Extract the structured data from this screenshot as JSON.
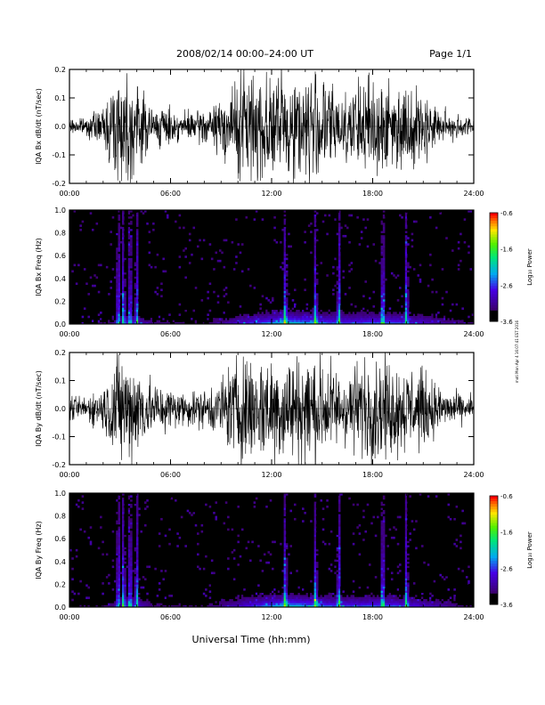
{
  "header": {
    "title": "2008/02/14  00:00–24:00 UT",
    "page": "Page 1/1"
  },
  "footer": {
    "xlabel": "Universal Time (hh:mm)"
  },
  "side_note": "moti Mon Apr 4 16:07:41 EST 2016",
  "chart_data": [
    {
      "type": "line",
      "id": "bx-dbdt",
      "ylabel": "IQA Bx dB/dt (nT/sec)",
      "ylim": [
        -0.2,
        0.2
      ],
      "yticks": [
        "-0.2",
        "-0.1",
        "0.0",
        "0.1",
        "0.2"
      ],
      "xlim": [
        "00:00",
        "24:00"
      ],
      "xticks": [
        "00:00",
        "06:00",
        "12:00",
        "18:00",
        "24:00"
      ],
      "activity_envelope": {
        "hours": [
          0,
          1,
          2,
          2.7,
          3,
          3.5,
          4,
          5,
          6,
          7,
          8,
          9,
          9.5,
          10,
          11,
          12,
          13,
          14,
          15,
          16,
          17,
          18,
          19,
          20,
          21,
          22,
          23,
          24
        ],
        "amplitude": [
          0.03,
          0.04,
          0.08,
          0.25,
          0.25,
          0.25,
          0.2,
          0.09,
          0.08,
          0.06,
          0.08,
          0.12,
          0.17,
          0.25,
          0.25,
          0.25,
          0.25,
          0.25,
          0.25,
          0.16,
          0.18,
          0.25,
          0.2,
          0.18,
          0.15,
          0.08,
          0.06,
          0.04
        ]
      }
    },
    {
      "type": "heatmap",
      "id": "bx-spec",
      "ylabel": "IQA Bx Freq (Hz)",
      "ylim": [
        0,
        1.0
      ],
      "yticks": [
        "0.0",
        "0.2",
        "0.4",
        "0.6",
        "0.8",
        "1.0"
      ],
      "xlim": [
        "00:00",
        "24:00"
      ],
      "xticks": [
        "00:00",
        "06:00",
        "12:00",
        "18:00",
        "24:00"
      ],
      "colorbar": {
        "label": "Log₁₀ Power",
        "range": [
          -3.6,
          -0.6
        ],
        "ticks": [
          "-0.6",
          "-1.6",
          "-2.6",
          "-3.6"
        ]
      },
      "vertical_bursts_hours": [
        2.9,
        3.2,
        3.6,
        4.0,
        12.8,
        14.6,
        16.0,
        18.6,
        20.0
      ],
      "noise_floor_log10": -3.6
    },
    {
      "type": "line",
      "id": "by-dbdt",
      "ylabel": "IQA By dB/dt (nT/sec)",
      "ylim": [
        -0.2,
        0.2
      ],
      "yticks": [
        "-0.2",
        "-0.1",
        "0.0",
        "0.1",
        "0.2"
      ],
      "xlim": [
        "00:00",
        "24:00"
      ],
      "xticks": [
        "00:00",
        "06:00",
        "12:00",
        "18:00",
        "24:00"
      ],
      "activity_envelope": {
        "hours": [
          0,
          1,
          2,
          2.7,
          3,
          3.5,
          4,
          5,
          6,
          7,
          8,
          9,
          9.5,
          10,
          11,
          12,
          13,
          14,
          15,
          16,
          17,
          18,
          19,
          20,
          21,
          22,
          23,
          24
        ],
        "amplitude": [
          0.05,
          0.06,
          0.1,
          0.25,
          0.25,
          0.25,
          0.22,
          0.12,
          0.1,
          0.08,
          0.09,
          0.14,
          0.2,
          0.25,
          0.25,
          0.25,
          0.25,
          0.25,
          0.25,
          0.17,
          0.2,
          0.25,
          0.22,
          0.2,
          0.18,
          0.1,
          0.07,
          0.06
        ]
      }
    },
    {
      "type": "heatmap",
      "id": "by-spec",
      "ylabel": "IQA By Freq (Hz)",
      "ylim": [
        0,
        1.0
      ],
      "yticks": [
        "0.0",
        "0.2",
        "0.4",
        "0.6",
        "0.8",
        "1.0"
      ],
      "xlim": [
        "00:00",
        "24:00"
      ],
      "xticks": [
        "00:00",
        "06:00",
        "12:00",
        "18:00",
        "24:00"
      ],
      "colorbar": {
        "label": "Log₁₀ Power",
        "range": [
          -3.6,
          -0.6
        ],
        "ticks": [
          "-0.6",
          "-1.6",
          "-2.6",
          "-3.6"
        ]
      },
      "vertical_bursts_hours": [
        2.9,
        3.2,
        3.6,
        4.0,
        12.8,
        14.6,
        16.0,
        18.6,
        20.0
      ],
      "noise_floor_log10": -3.6
    }
  ]
}
